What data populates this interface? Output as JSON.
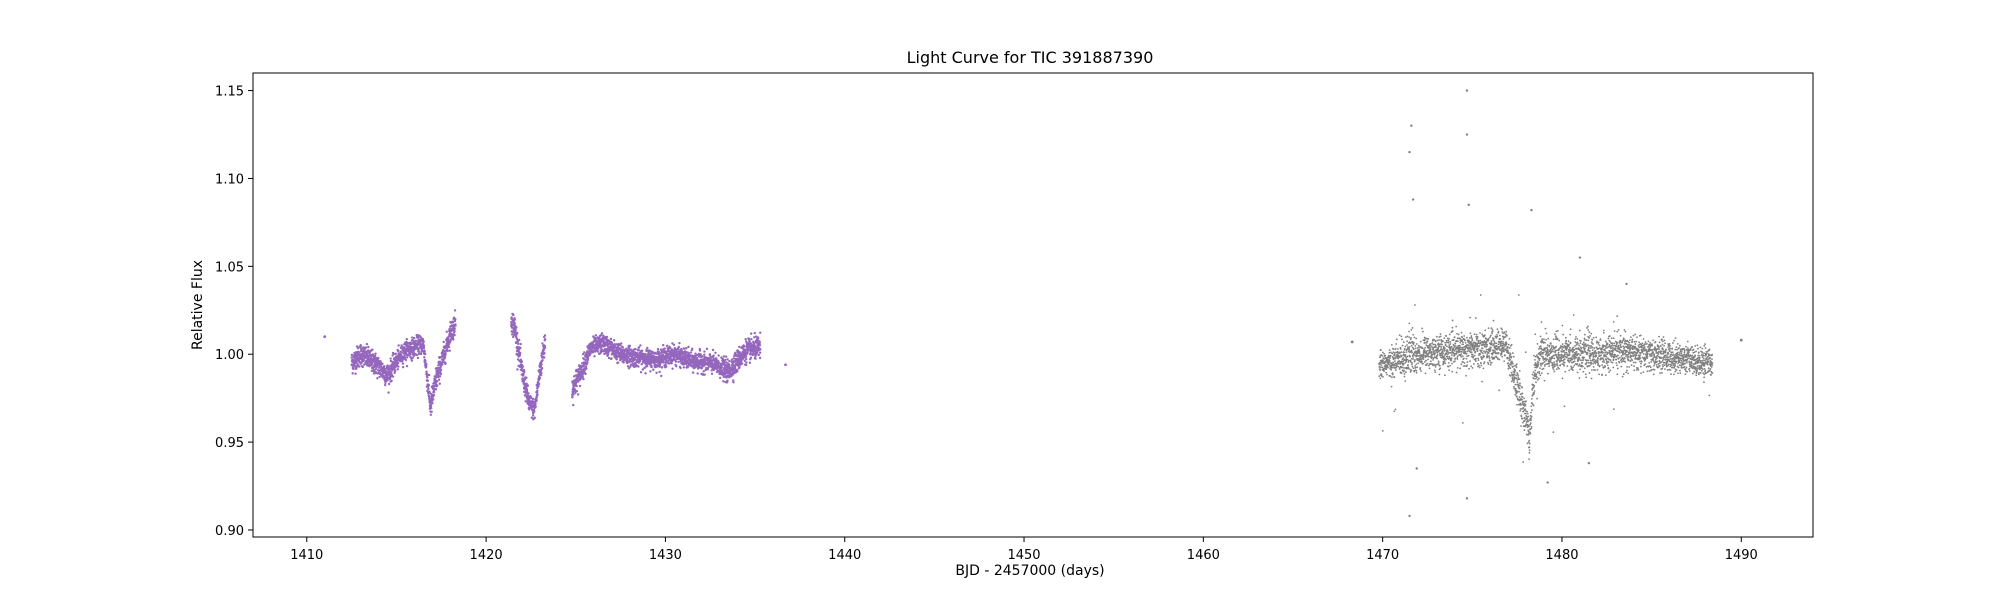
{
  "chart_data": {
    "type": "scatter",
    "title": "Light Curve for TIC 391887390",
    "xlabel": "BJD - 2457000 (days)",
    "ylabel": "Relative Flux",
    "xlim": [
      1407,
      1494
    ],
    "ylim": [
      0.896,
      1.16
    ],
    "xticks": [
      1410,
      1420,
      1430,
      1440,
      1450,
      1460,
      1470,
      1480,
      1490
    ],
    "yticks": [
      0.9,
      0.95,
      1.0,
      1.05,
      1.1,
      1.15
    ],
    "xtick_labels": [
      "1410",
      "1420",
      "1430",
      "1440",
      "1450",
      "1460",
      "1470",
      "1480",
      "1490"
    ],
    "ytick_labels": [
      "0.90",
      "0.95",
      "1.00",
      "1.05",
      "1.10",
      "1.15"
    ],
    "grid": false,
    "series": [
      {
        "color": "#9467bd",
        "x": [
          1411.0,
          1412.5,
          1413.0,
          1413.5,
          1414.0,
          1414.5,
          1415.0,
          1415.5,
          1416.0,
          1416.5,
          1416.9,
          1417.2,
          1417.6,
          1418.0,
          1418.3,
          1421.4,
          1421.6,
          1422.0,
          1422.4,
          1422.7,
          1423.0,
          1423.3,
          1424.8,
          1425.3,
          1425.8,
          1426.5,
          1427.5,
          1428.5,
          1429.5,
          1430.5,
          1431.5,
          1432.5,
          1433.0,
          1433.5,
          1434.5,
          1435.3,
          1436.7
        ],
        "y": [
          1.01,
          0.995,
          1.0,
          0.997,
          0.993,
          0.988,
          0.996,
          1.002,
          1.004,
          1.006,
          0.97,
          0.985,
          0.998,
          1.012,
          1.018,
          1.02,
          1.015,
          0.99,
          0.972,
          0.968,
          0.99,
          1.008,
          0.98,
          0.99,
          1.003,
          1.006,
          1.0,
          0.998,
          0.997,
          1.0,
          0.996,
          0.995,
          0.993,
          0.99,
          1.002,
          1.004,
          0.994
        ],
        "scatter": [
          0.004,
          0.007,
          0.007,
          0.007,
          0.007,
          0.007,
          0.006,
          0.006,
          0.006,
          0.006,
          0.008,
          0.008,
          0.007,
          0.007,
          0.007,
          0.008,
          0.008,
          0.008,
          0.007,
          0.006,
          0.008,
          0.008,
          0.008,
          0.007,
          0.006,
          0.006,
          0.006,
          0.006,
          0.006,
          0.006,
          0.006,
          0.006,
          0.006,
          0.007,
          0.007,
          0.007,
          0.002
        ]
      },
      {
        "color": "#808080",
        "x": [
          1468.3,
          1469.8,
          1470.5,
          1471.0,
          1471.5,
          1472.0,
          1473.0,
          1474.0,
          1474.5,
          1475.0,
          1476.0,
          1476.9,
          1478.2,
          1478.4,
          1478.8,
          1479.5,
          1480.5,
          1481.5,
          1482.5,
          1483.5,
          1484.5,
          1485.5,
          1486.5,
          1487.5,
          1488.4,
          1490.0
        ],
        "y": [
          1.007,
          0.995,
          0.995,
          0.998,
          1.0,
          1.0,
          1.002,
          1.002,
          1.003,
          1.003,
          1.004,
          1.005,
          0.955,
          0.985,
          1.0,
          1.0,
          1.0,
          1.0,
          1.0,
          1.002,
          1.0,
          0.999,
          0.998,
          0.996,
          0.996,
          1.008
        ],
        "scatter": [
          0.003,
          0.008,
          0.009,
          0.012,
          0.015,
          0.012,
          0.01,
          0.01,
          0.012,
          0.012,
          0.01,
          0.01,
          0.015,
          0.014,
          0.012,
          0.011,
          0.011,
          0.011,
          0.011,
          0.011,
          0.01,
          0.01,
          0.009,
          0.009,
          0.009,
          0.003
        ]
      }
    ],
    "outliers": [
      {
        "x": 1471.6,
        "y": 1.13,
        "series": 1
      },
      {
        "x": 1471.5,
        "y": 1.115,
        "series": 1
      },
      {
        "x": 1471.7,
        "y": 1.088,
        "series": 1
      },
      {
        "x": 1471.5,
        "y": 0.908,
        "series": 1
      },
      {
        "x": 1471.9,
        "y": 0.935,
        "series": 1
      },
      {
        "x": 1474.7,
        "y": 1.15,
        "series": 1
      },
      {
        "x": 1474.7,
        "y": 1.125,
        "series": 1
      },
      {
        "x": 1474.8,
        "y": 1.085,
        "series": 1
      },
      {
        "x": 1474.7,
        "y": 0.918,
        "series": 1
      },
      {
        "x": 1478.3,
        "y": 1.082,
        "series": 1
      },
      {
        "x": 1479.2,
        "y": 0.927,
        "series": 1
      },
      {
        "x": 1481.5,
        "y": 0.938,
        "series": 1
      },
      {
        "x": 1483.6,
        "y": 1.04,
        "series": 1
      },
      {
        "x": 1481.0,
        "y": 1.055,
        "series": 1
      }
    ]
  }
}
